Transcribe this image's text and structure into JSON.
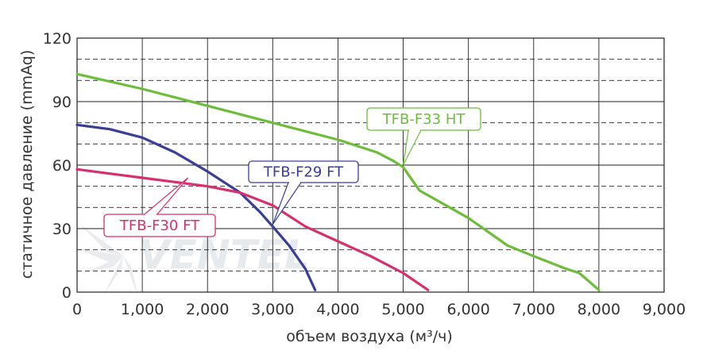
{
  "chart_data": {
    "type": "line",
    "xlabel": "объем воздуха (м³/ч)",
    "ylabel": "статичное давление (mmAq)",
    "xlim": [
      0,
      9000
    ],
    "ylim": [
      0,
      120
    ],
    "x_ticks": [
      "0",
      "1,000",
      "2,000",
      "3,000",
      "4,000",
      "5,000",
      "6,000",
      "7,000",
      "8,000",
      "9,000"
    ],
    "y_ticks": [
      "0",
      "30",
      "60",
      "90",
      "120"
    ],
    "grid": true,
    "series": [
      {
        "name": "TFB-F33 HT",
        "color": "#6cbd3a",
        "x": [
          0,
          1000,
          2000,
          3000,
          4000,
          4600,
          4850,
          5000,
          5250,
          6000,
          6600,
          7000,
          7500,
          7700,
          8000
        ],
        "y": [
          103,
          96,
          88,
          80,
          72,
          66,
          62,
          59,
          48,
          35,
          22,
          17,
          11,
          9,
          1
        ],
        "label_anchor": [
          5000,
          60
        ]
      },
      {
        "name": "TFB-F29 FT",
        "color": "#3b3e96",
        "x": [
          0,
          500,
          1000,
          1500,
          2000,
          2500,
          2800,
          3000,
          3250,
          3500,
          3650
        ],
        "y": [
          79,
          77,
          73,
          66,
          57,
          47,
          38,
          31,
          22,
          11,
          1
        ],
        "label_anchor": [
          3000,
          32
        ]
      },
      {
        "name": "TFB-F30 FT",
        "color": "#d6306e",
        "x": [
          0,
          500,
          1000,
          1500,
          2000,
          2500,
          3000,
          3500,
          4000,
          4500,
          5000,
          5380
        ],
        "y": [
          58,
          56,
          54,
          52,
          50,
          47,
          41,
          31,
          24,
          17,
          9,
          1
        ],
        "label_anchor": [
          1700,
          54
        ]
      }
    ]
  },
  "watermark": "VENTEL"
}
